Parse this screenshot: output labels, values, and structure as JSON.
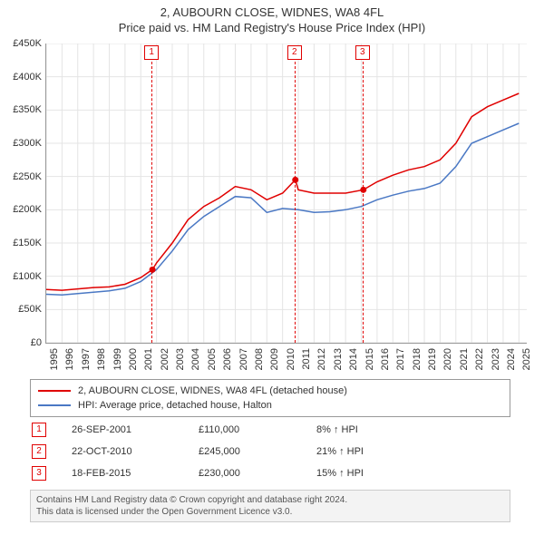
{
  "titles": {
    "main": "2, AUBOURN CLOSE, WIDNES, WA8 4FL",
    "sub": "Price paid vs. HM Land Registry's House Price Index (HPI)"
  },
  "chart": {
    "type": "line",
    "background_color": "#ffffff",
    "grid_color": "#e4e4e4",
    "border_color": "#999999",
    "x_years": [
      1995,
      1996,
      1997,
      1998,
      1999,
      2000,
      2001,
      2002,
      2003,
      2004,
      2005,
      2006,
      2007,
      2008,
      2009,
      2010,
      2011,
      2012,
      2013,
      2014,
      2015,
      2016,
      2017,
      2018,
      2019,
      2020,
      2021,
      2022,
      2023,
      2024,
      2025
    ],
    "y_ticks": [
      0,
      50,
      100,
      150,
      200,
      250,
      300,
      350,
      400,
      450
    ],
    "y_tick_labels": [
      "£0",
      "£50K",
      "£100K",
      "£150K",
      "£200K",
      "£250K",
      "£300K",
      "£350K",
      "£400K",
      "£450K"
    ],
    "ylim": [
      0,
      450
    ],
    "xlim": [
      1995,
      2025.5
    ],
    "series": [
      {
        "name": "2, AUBOURN CLOSE, WIDNES, WA8 4FL (detached house)",
        "color": "#e00000",
        "line_width": 1.5,
        "points": [
          [
            1995,
            80
          ],
          [
            1996,
            79
          ],
          [
            1997,
            81
          ],
          [
            1998,
            83
          ],
          [
            1999,
            84
          ],
          [
            2000,
            88
          ],
          [
            2001,
            98
          ],
          [
            2001.74,
            110
          ],
          [
            2002,
            120
          ],
          [
            2003,
            150
          ],
          [
            2004,
            185
          ],
          [
            2005,
            205
          ],
          [
            2006,
            218
          ],
          [
            2007,
            235
          ],
          [
            2008,
            230
          ],
          [
            2009,
            215
          ],
          [
            2010,
            225
          ],
          [
            2010.81,
            245
          ],
          [
            2011,
            230
          ],
          [
            2012,
            225
          ],
          [
            2013,
            225
          ],
          [
            2014,
            225
          ],
          [
            2015.13,
            230
          ],
          [
            2016,
            242
          ],
          [
            2017,
            252
          ],
          [
            2018,
            260
          ],
          [
            2019,
            265
          ],
          [
            2020,
            275
          ],
          [
            2021,
            300
          ],
          [
            2022,
            340
          ],
          [
            2023,
            355
          ],
          [
            2024,
            365
          ],
          [
            2025,
            375
          ]
        ]
      },
      {
        "name": "HPI: Average price, detached house, Halton",
        "color": "#4a78c4",
        "line_width": 1.5,
        "points": [
          [
            1995,
            73
          ],
          [
            1996,
            72
          ],
          [
            1997,
            74
          ],
          [
            1998,
            76
          ],
          [
            1999,
            78
          ],
          [
            2000,
            82
          ],
          [
            2001,
            92
          ],
          [
            2002,
            110
          ],
          [
            2003,
            138
          ],
          [
            2004,
            170
          ],
          [
            2005,
            190
          ],
          [
            2006,
            205
          ],
          [
            2007,
            220
          ],
          [
            2008,
            218
          ],
          [
            2009,
            196
          ],
          [
            2010,
            202
          ],
          [
            2011,
            200
          ],
          [
            2012,
            196
          ],
          [
            2013,
            197
          ],
          [
            2014,
            200
          ],
          [
            2015,
            205
          ],
          [
            2016,
            215
          ],
          [
            2017,
            222
          ],
          [
            2018,
            228
          ],
          [
            2019,
            232
          ],
          [
            2020,
            240
          ],
          [
            2021,
            265
          ],
          [
            2022,
            300
          ],
          [
            2023,
            310
          ],
          [
            2024,
            320
          ],
          [
            2025,
            330
          ]
        ]
      }
    ],
    "sale_markers": [
      {
        "num": "1",
        "x": 2001.74,
        "y": 110
      },
      {
        "num": "2",
        "x": 2010.81,
        "y": 245
      },
      {
        "num": "3",
        "x": 2015.13,
        "y": 230
      }
    ]
  },
  "legend": {
    "items": [
      {
        "color": "#e00000",
        "label": "2, AUBOURN CLOSE, WIDNES, WA8 4FL (detached house)"
      },
      {
        "color": "#4a78c4",
        "label": "HPI: Average price, detached house, Halton"
      }
    ]
  },
  "transactions": [
    {
      "num": "1",
      "date": "26-SEP-2001",
      "price": "£110,000",
      "hpi": "8% ↑ HPI"
    },
    {
      "num": "2",
      "date": "22-OCT-2010",
      "price": "£245,000",
      "hpi": "21% ↑ HPI"
    },
    {
      "num": "3",
      "date": "18-FEB-2015",
      "price": "£230,000",
      "hpi": "15% ↑ HPI"
    }
  ],
  "footer": {
    "line1": "Contains HM Land Registry data © Crown copyright and database right 2024.",
    "line2": "This data is licensed under the Open Government Licence v3.0."
  }
}
